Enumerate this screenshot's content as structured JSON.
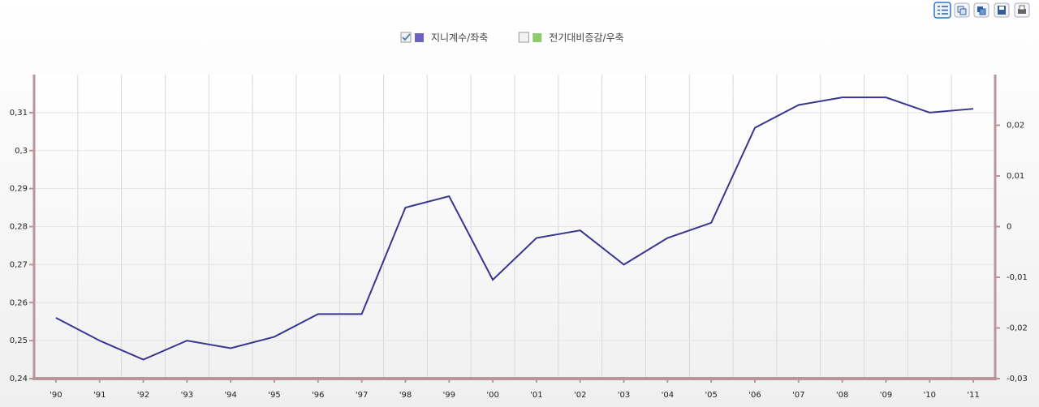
{
  "chart_data": {
    "type": "line",
    "categories": [
      "'90",
      "'91",
      "'92",
      "'93",
      "'94",
      "'95",
      "'96",
      "'97",
      "'98",
      "'99",
      "'00",
      "'01",
      "'02",
      "'03",
      "'04",
      "'05",
      "'06",
      "'07",
      "'08",
      "'09",
      "'10",
      "'11"
    ],
    "series": [
      {
        "name": "지니계수/좌축",
        "color": "#6b63c4",
        "line_color": "#3a3590",
        "checked": true,
        "values": [
          0.256,
          0.25,
          0.245,
          0.25,
          0.248,
          0.251,
          0.257,
          0.257,
          0.285,
          0.288,
          0.266,
          0.277,
          0.279,
          0.27,
          0.277,
          0.281,
          0.306,
          0.312,
          0.314,
          0.314,
          0.31,
          0.311
        ]
      },
      {
        "name": "전기대비증감/우축",
        "color": "#8dcc6a",
        "axis": "y2",
        "checked": false,
        "values": [
          null,
          null,
          null,
          null,
          null,
          null,
          null,
          null,
          null,
          null,
          null,
          null,
          null,
          null,
          null,
          null,
          null,
          null,
          null,
          null,
          null,
          null
        ]
      }
    ],
    "ylim": [
      0.24,
      0.32
    ],
    "yticks": [
      {
        "value": 0.24,
        "label": "0,24"
      },
      {
        "value": 0.25,
        "label": "0,25"
      },
      {
        "value": 0.26,
        "label": "0,26"
      },
      {
        "value": 0.27,
        "label": "0,27"
      },
      {
        "value": 0.28,
        "label": "0,28"
      },
      {
        "value": 0.29,
        "label": "0,29"
      },
      {
        "value": 0.3,
        "label": "0,3"
      },
      {
        "value": 0.31,
        "label": "0,31"
      }
    ],
    "y2lim": [
      -0.03,
      0.03
    ],
    "y2ticks": [
      {
        "value": -0.03,
        "label": "-0,03"
      },
      {
        "value": -0.02,
        "label": "-0,02"
      },
      {
        "value": -0.01,
        "label": "-0,01"
      },
      0,
      {
        "value": 0.01,
        "label": "0,01"
      },
      {
        "value": 0.02,
        "label": "0,02"
      }
    ],
    "grid": true
  }
}
